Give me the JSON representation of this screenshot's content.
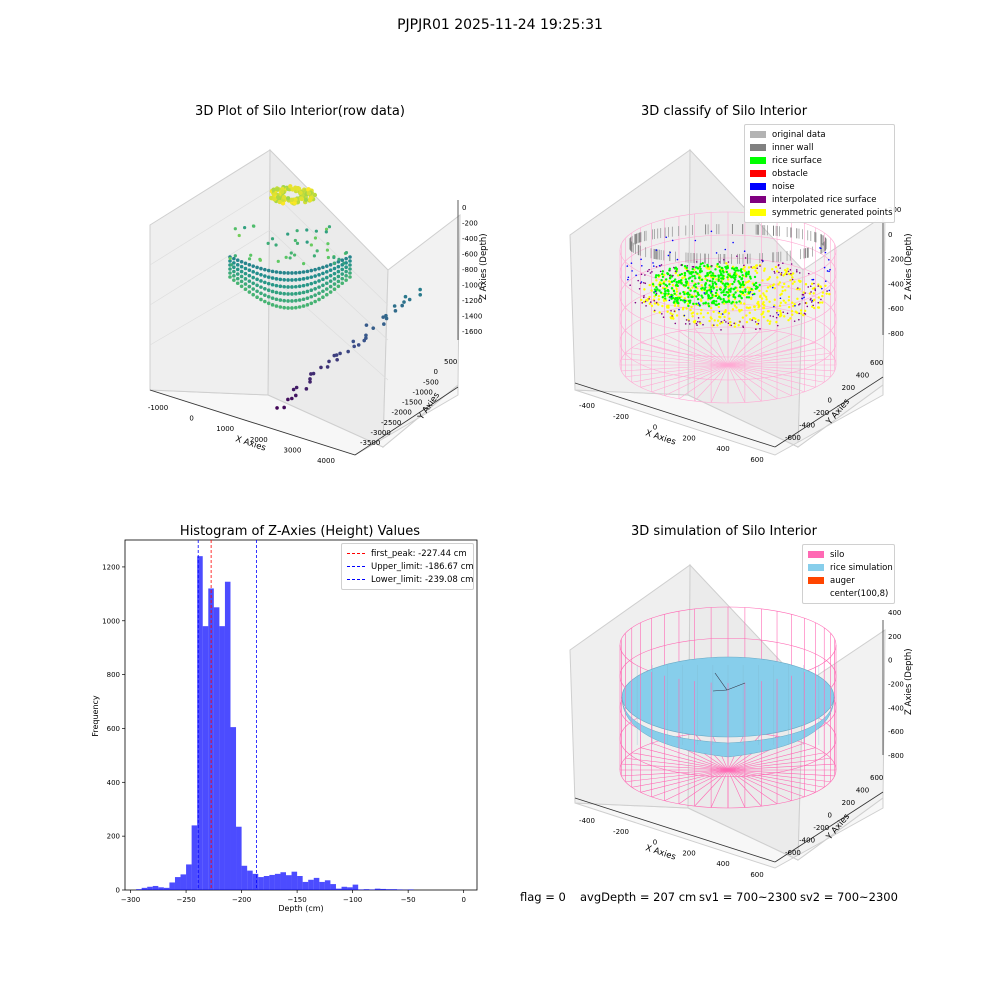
{
  "suptitle": "PJPJR01 2025-11-24 19:25:31",
  "plot1": {
    "title": "3D Plot of Silo Interior(row data)",
    "x_label": "X Axies",
    "y_label": "Y Axies",
    "z_label": "Z Axies (Depth)",
    "x_ticks": [
      "-1000",
      "0",
      "1000",
      "2000",
      "3000",
      "4000"
    ],
    "y_ticks": [
      "500",
      "0",
      "-500",
      "-1000",
      "-1500",
      "-2000",
      "-2500",
      "-3000",
      "-3500"
    ],
    "z_ticks": [
      "0",
      "-200",
      "-400",
      "-600",
      "-800",
      "-1000",
      "-1200",
      "-1400",
      "-1600"
    ]
  },
  "plot2": {
    "title": "3D classify of Silo Interior",
    "x_label": "X Axies",
    "y_label": "Y Axies",
    "z_label": "Z Axies (Depth)",
    "x_ticks": [
      "-400",
      "-200",
      "0",
      "200",
      "400",
      "600"
    ],
    "y_ticks": [
      "600",
      "400",
      "200",
      "0",
      "-200",
      "-400",
      "-600"
    ],
    "z_ticks": [
      "200",
      "0",
      "-200",
      "-400",
      "-600",
      "-800"
    ],
    "legend": [
      {
        "label": "original data",
        "color": "#b3b3b3"
      },
      {
        "label": "inner wall",
        "color": "#808080"
      },
      {
        "label": "rice surface",
        "color": "#00ff00"
      },
      {
        "label": "obstacle",
        "color": "#ff0000"
      },
      {
        "label": "noise",
        "color": "#0000ff"
      },
      {
        "label": "interpolated rice surface",
        "color": "#800080"
      },
      {
        "label": "symmetric generated points",
        "color": "#ffff00"
      }
    ]
  },
  "plot4": {
    "title": "3D simulation of Silo Interior",
    "x_label": "X Axies",
    "y_label": "Y Axies",
    "z_label": "Z Axies (Depth)",
    "x_ticks": [
      "-400",
      "-200",
      "0",
      "200",
      "400",
      "600"
    ],
    "y_ticks": [
      "600",
      "400",
      "200",
      "0",
      "-200",
      "-400",
      "-600"
    ],
    "z_ticks": [
      "400",
      "200",
      "0",
      "-200",
      "-400",
      "-600",
      "-800"
    ],
    "legend": [
      {
        "label": "silo",
        "color": "#ff69b4"
      },
      {
        "label": "rice simulation",
        "color": "#87ceeb"
      },
      {
        "label": "auger",
        "color": "#ff4500"
      },
      {
        "label": "center(100,8)",
        "color": ""
      }
    ]
  },
  "footer": {
    "flag": "flag = 0",
    "avg": "avgDepth = 207 cm",
    "sv1": "sv1 = 700~2300",
    "sv2": "sv2 = 700~2300"
  },
  "chart_data": {
    "type": "bar",
    "title": "Histogram of Z-Axies (Height) Values",
    "xlabel": "Depth (cm)",
    "ylabel": "Frequency",
    "xlim": [
      -305,
      12
    ],
    "ylim": [
      0,
      1300
    ],
    "x_ticks": [
      -300,
      -250,
      -200,
      -150,
      -100,
      -50,
      0
    ],
    "y_ticks": [
      0,
      200,
      400,
      600,
      800,
      1000,
      1200
    ],
    "bar_color": "#0000ff",
    "bin_width": 5,
    "bins_start": [
      -295,
      -290,
      -285,
      -280,
      -275,
      -270,
      -265,
      -260,
      -255,
      -250,
      -245,
      -240,
      -235,
      -230,
      -225,
      -220,
      -215,
      -210,
      -205,
      -200,
      -195,
      -190,
      -185,
      -180,
      -175,
      -170,
      -165,
      -160,
      -155,
      -150,
      -145,
      -140,
      -135,
      -130,
      -125,
      -120,
      -115,
      -110,
      -105,
      -100,
      -95,
      -90,
      -85,
      -80,
      -75,
      -70,
      -65,
      -60,
      -55,
      -50,
      -45,
      -40,
      -35,
      -30,
      -25,
      -20,
      -15,
      -10,
      -5,
      0
    ],
    "values": [
      3,
      8,
      12,
      15,
      10,
      8,
      28,
      48,
      58,
      95,
      240,
      1240,
      980,
      1120,
      1050,
      980,
      1145,
      605,
      235,
      90,
      72,
      60,
      48,
      52,
      56,
      60,
      66,
      55,
      68,
      52,
      30,
      38,
      45,
      30,
      36,
      22,
      5,
      12,
      10,
      20,
      2,
      3,
      2,
      5,
      4,
      3,
      3,
      2,
      1,
      2,
      0,
      0,
      0,
      0,
      0,
      0,
      0,
      0,
      0,
      0
    ],
    "lines": [
      {
        "label": "first_peak: -227.44 cm",
        "x": -227.44,
        "color": "#ff0000"
      },
      {
        "label": "Upper_limit: -186.67 cm",
        "x": -186.67,
        "color": "#0000ff"
      },
      {
        "label": "Lower_limit: -239.08 cm",
        "x": -239.08,
        "color": "#0000ff"
      }
    ]
  }
}
